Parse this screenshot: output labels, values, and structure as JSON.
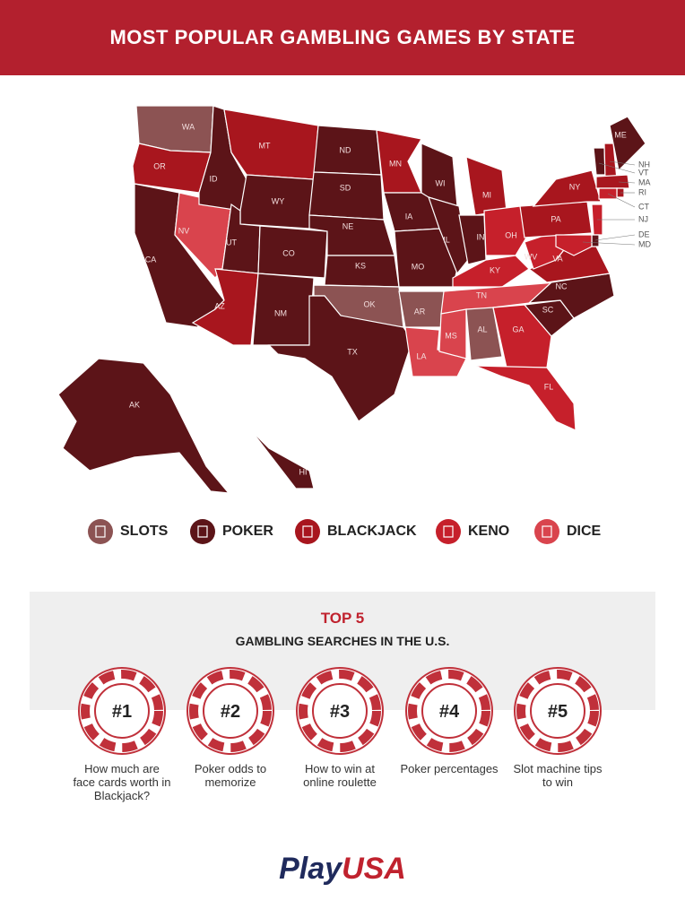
{
  "header": {
    "title": "MOST POPULAR GAMBLING GAMES BY STATE"
  },
  "legend": [
    {
      "label": "SLOTS",
      "color": "#8c5353"
    },
    {
      "label": "POKER",
      "color": "#5c1418"
    },
    {
      "label": "BLACKJACK",
      "color": "#a8161e"
    },
    {
      "label": "KENO",
      "color": "#c6202b"
    },
    {
      "label": "DICE",
      "color": "#d9444d"
    }
  ],
  "states": [
    {
      "label": "WA",
      "game": 0
    },
    {
      "label": "OR",
      "game": 2
    },
    {
      "label": "CA",
      "game": 1
    },
    {
      "label": "NV",
      "game": 4
    },
    {
      "label": "ID",
      "game": 1
    },
    {
      "label": "MT",
      "game": 2
    },
    {
      "label": "WY",
      "game": 1
    },
    {
      "label": "UT",
      "game": 1
    },
    {
      "label": "AZ",
      "game": 2
    },
    {
      "label": "CO",
      "game": 1
    },
    {
      "label": "NM",
      "game": 1
    },
    {
      "label": "ND",
      "game": 1
    },
    {
      "label": "SD",
      "game": 1
    },
    {
      "label": "NE",
      "game": 1
    },
    {
      "label": "KS",
      "game": 1
    },
    {
      "label": "OK",
      "game": 0
    },
    {
      "label": "TX",
      "game": 1
    },
    {
      "label": "MN",
      "game": 2
    },
    {
      "label": "IA",
      "game": 1
    },
    {
      "label": "MO",
      "game": 1
    },
    {
      "label": "AR",
      "game": 0
    },
    {
      "label": "LA",
      "game": 4
    },
    {
      "label": "WI",
      "game": 1
    },
    {
      "label": "IL",
      "game": 1
    },
    {
      "label": "MI",
      "game": 2
    },
    {
      "label": "IN",
      "game": 1
    },
    {
      "label": "OH",
      "game": 3
    },
    {
      "label": "KY",
      "game": 3
    },
    {
      "label": "TN",
      "game": 4
    },
    {
      "label": "MS",
      "game": 4
    },
    {
      "label": "AL",
      "game": 0
    },
    {
      "label": "GA",
      "game": 3
    },
    {
      "label": "FL",
      "game": 3
    },
    {
      "label": "SC",
      "game": 1
    },
    {
      "label": "NC",
      "game": 1
    },
    {
      "label": "VA",
      "game": 2
    },
    {
      "label": "WV",
      "game": 3
    },
    {
      "label": "PA",
      "game": 2
    },
    {
      "label": "NY",
      "game": 2
    },
    {
      "label": "VT",
      "game": 1
    },
    {
      "label": "NH",
      "game": 2
    },
    {
      "label": "MA",
      "game": 2
    },
    {
      "label": "RI",
      "game": 2
    },
    {
      "label": "CT",
      "game": 3
    },
    {
      "label": "NJ",
      "game": 3
    },
    {
      "label": "DE",
      "game": 1
    },
    {
      "label": "MD",
      "game": 3
    },
    {
      "label": "ME",
      "game": 1
    },
    {
      "label": "AK",
      "game": 1
    },
    {
      "label": "HI",
      "game": 1
    }
  ],
  "top5": {
    "title": "TOP 5",
    "subtitle": "GAMBLING SEARCHES IN THE U.S.",
    "items": [
      {
        "rank": "#1",
        "text": "How much are face cards worth in Blackjack?"
      },
      {
        "rank": "#2",
        "text": "Poker odds to memorize"
      },
      {
        "rank": "#3",
        "text": "How to win at online roulette"
      },
      {
        "rank": "#4",
        "text": "Poker percentages"
      },
      {
        "rank": "#5",
        "text": "Slot machine tips to win"
      }
    ]
  },
  "logo": {
    "play": "Play",
    "usa": "USA"
  }
}
